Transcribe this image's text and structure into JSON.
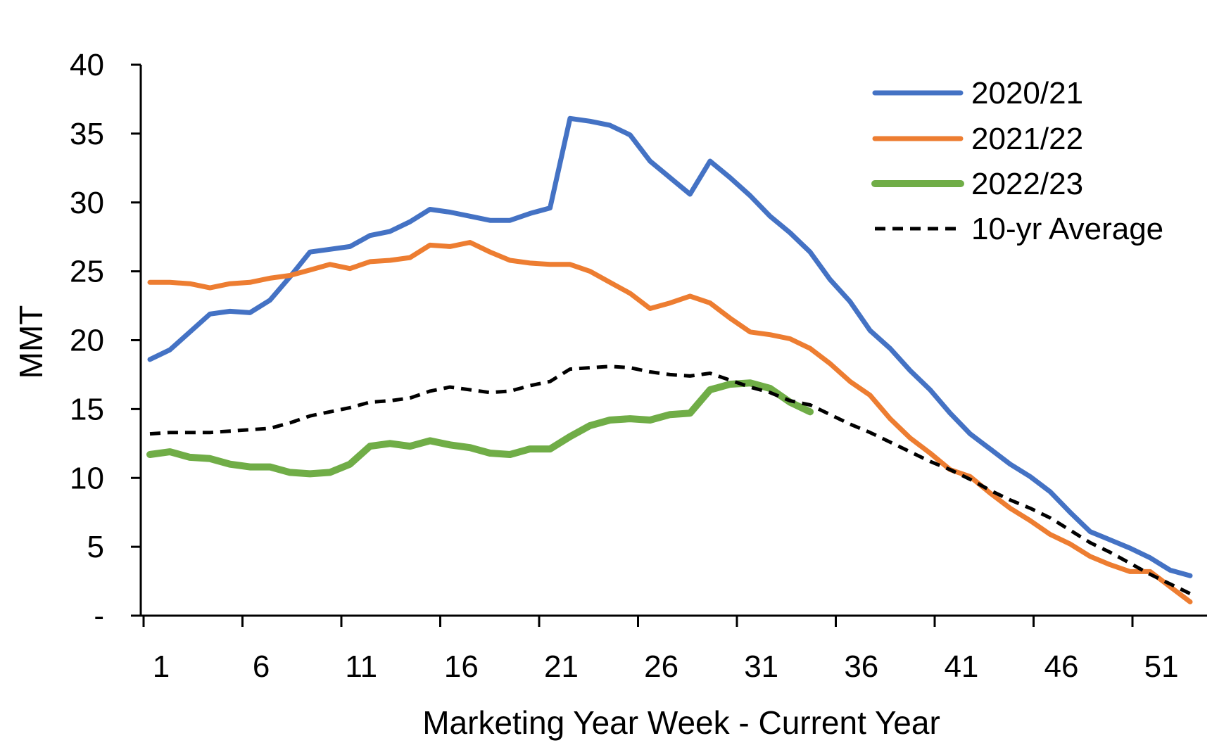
{
  "chart_data": {
    "type": "line",
    "title": "",
    "xlabel": "Marketing Year Week - Current Year",
    "ylabel": "MMT",
    "xlim": [
      1,
      53
    ],
    "ylim": [
      0,
      40
    ],
    "x_ticks": [
      1,
      6,
      11,
      16,
      21,
      26,
      31,
      36,
      41,
      46,
      51
    ],
    "x_tick_labels": [
      "1",
      "6",
      "11",
      "16",
      "21",
      "26",
      "31",
      "36",
      "41",
      "46",
      "51"
    ],
    "y_ticks": [
      0,
      5,
      10,
      15,
      20,
      25,
      30,
      35,
      40
    ],
    "y_tick_labels": [
      "-",
      "5",
      "10",
      "15",
      "20",
      "25",
      "30",
      "35",
      "40"
    ],
    "grid": false,
    "legend_position": "top-right",
    "series": [
      {
        "name": "2020/21",
        "color": "#4472C4",
        "style": "solid",
        "values": [
          18.6,
          19.3,
          20.6,
          21.9,
          22.1,
          22.0,
          22.9,
          24.6,
          26.4,
          26.6,
          26.8,
          27.6,
          27.9,
          28.6,
          29.5,
          29.3,
          29.0,
          28.7,
          28.7,
          29.2,
          29.6,
          36.1,
          35.9,
          35.6,
          34.9,
          33.0,
          31.8,
          30.6,
          33.0,
          31.8,
          30.5,
          29.0,
          27.8,
          26.4,
          24.4,
          22.8,
          20.7,
          19.4,
          17.8,
          16.4,
          14.7,
          13.2,
          12.1,
          11.0,
          10.1,
          9.0,
          7.5,
          6.1,
          5.5,
          4.9,
          4.2,
          3.3,
          2.9
        ]
      },
      {
        "name": "2021/22",
        "color": "#ED7D31",
        "style": "solid",
        "values": [
          24.2,
          24.2,
          24.1,
          23.8,
          24.1,
          24.2,
          24.5,
          24.7,
          25.1,
          25.5,
          25.2,
          25.7,
          25.8,
          26.0,
          26.9,
          26.8,
          27.1,
          26.4,
          25.8,
          25.6,
          25.5,
          25.5,
          25.0,
          24.2,
          23.4,
          22.3,
          22.7,
          23.2,
          22.7,
          21.6,
          20.6,
          20.4,
          20.1,
          19.4,
          18.3,
          17.0,
          16.0,
          14.3,
          12.9,
          11.8,
          10.6,
          10.1,
          8.9,
          7.8,
          6.9,
          5.9,
          5.2,
          4.3,
          3.7,
          3.2,
          3.2,
          2.1,
          1.0
        ]
      },
      {
        "name": "2022/23",
        "color": "#70AD47",
        "style": "solid",
        "values": [
          11.7,
          11.9,
          11.5,
          11.4,
          11.0,
          10.8,
          10.8,
          10.4,
          10.3,
          10.4,
          11.0,
          12.3,
          12.5,
          12.3,
          12.7,
          12.4,
          12.2,
          11.8,
          11.7,
          12.1,
          12.1,
          13.0,
          13.8,
          14.2,
          14.3,
          14.2,
          14.6,
          14.7,
          16.4,
          16.8,
          16.9,
          16.5,
          15.5,
          14.8
        ]
      },
      {
        "name": "10-yr Average",
        "color": "#000000",
        "style": "dashed",
        "values": [
          13.2,
          13.3,
          13.3,
          13.3,
          13.4,
          13.5,
          13.6,
          14.0,
          14.5,
          14.8,
          15.1,
          15.5,
          15.6,
          15.8,
          16.3,
          16.6,
          16.4,
          16.2,
          16.3,
          16.7,
          17.0,
          17.9,
          18.0,
          18.1,
          18.0,
          17.7,
          17.5,
          17.4,
          17.6,
          17.1,
          16.6,
          16.2,
          15.6,
          15.3,
          14.6,
          13.9,
          13.3,
          12.6,
          11.9,
          11.2,
          10.6,
          9.9,
          9.1,
          8.4,
          7.8,
          7.1,
          6.2,
          5.3,
          4.6,
          3.8,
          3.0,
          2.3,
          1.6
        ]
      }
    ]
  }
}
